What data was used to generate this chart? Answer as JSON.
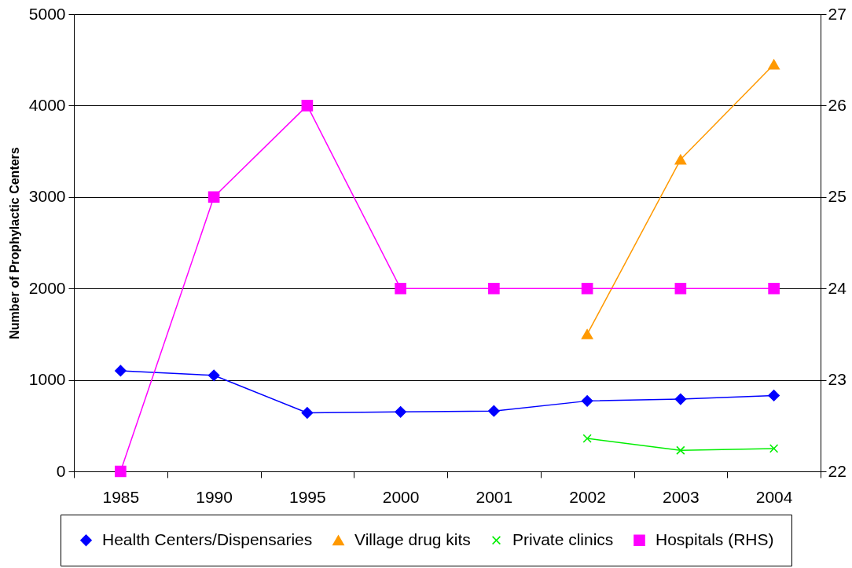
{
  "chart_data": {
    "type": "line",
    "ylabel": "Number of Prophylactic Centers",
    "categories": [
      "1985",
      "1990",
      "1995",
      "2000",
      "2001",
      "2002",
      "2003",
      "2004"
    ],
    "ylim": [
      0,
      5000
    ],
    "yticks": [
      0,
      1000,
      2000,
      3000,
      4000,
      5000
    ],
    "y2lim": [
      22,
      27
    ],
    "y2ticks": [
      22,
      23,
      24,
      25,
      26,
      27
    ],
    "grid": "y",
    "legend": "bottom",
    "series": [
      {
        "name": "Health Centers/Dispensaries",
        "color": "#0000ff",
        "marker": "diamond",
        "values": [
          1100,
          1050,
          640,
          650,
          660,
          770,
          790,
          830
        ]
      },
      {
        "name": "Village drug kits",
        "color": "#ff9900",
        "marker": "triangle",
        "values": [
          null,
          null,
          null,
          null,
          null,
          1500,
          3410,
          4450
        ]
      },
      {
        "name": "Private clinics",
        "color": "#00ee00",
        "marker": "cross",
        "values": [
          null,
          null,
          null,
          null,
          null,
          360,
          230,
          250
        ]
      },
      {
        "name": "Hospitals (RHS)",
        "color": "#ff00ff",
        "marker": "square",
        "axis": "y2",
        "values": [
          22,
          25,
          26,
          24,
          24,
          24,
          24,
          24
        ]
      }
    ]
  }
}
